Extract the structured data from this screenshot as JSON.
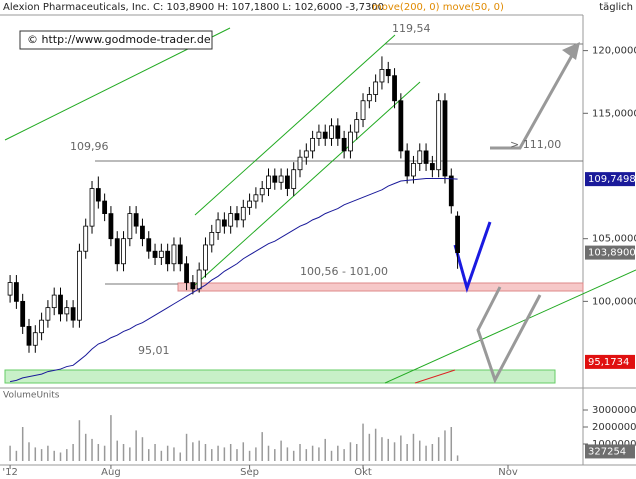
{
  "header": {
    "instrument": "Alexion Pharmaceuticals, Inc. C: 103,8900 H: 107,1800 L: 102,6000 -3,7300",
    "indicators": "move(200, 0) move(50, 0)",
    "interval": "täglich"
  },
  "copyright": "© http://www.godmode-trader.de",
  "chart_data": {
    "type": "candlestick",
    "xlim": [
      -1.6,
      90.9
    ],
    "xticks": [
      {
        "value": 0,
        "label": "'12"
      },
      {
        "value": 16,
        "label": "Aug"
      },
      {
        "value": 38,
        "label": "Sep"
      },
      {
        "value": 56,
        "label": "Okt"
      },
      {
        "value": 79,
        "label": "Nov"
      }
    ],
    "ylim": [
      93.33,
      122.84
    ],
    "yticks": [
      {
        "value": 100,
        "label": "100,0000"
      },
      {
        "value": 105,
        "label": "105,0000"
      },
      {
        "value": 115,
        "label": "115,0000"
      },
      {
        "value": 120,
        "label": "120,0000"
      }
    ],
    "open": [
      100.5,
      101.5,
      100,
      98,
      96.5,
      97.5,
      98.5,
      99.5,
      100.5,
      99,
      99.5,
      98.5,
      104,
      106,
      109,
      108,
      107,
      105,
      103,
      105,
      107,
      106,
      105,
      104,
      103.5,
      104,
      103,
      104.5,
      103,
      101.5,
      101,
      102.5,
      104.5,
      105.5,
      106.5,
      106,
      107,
      106.5,
      107.5,
      108,
      108.5,
      109,
      110,
      109.5,
      110,
      109,
      110.5,
      111.5,
      112,
      113,
      113.5,
      113,
      114,
      113,
      112,
      113.5,
      114.5,
      116,
      116.5,
      117.5,
      118.5,
      118,
      116,
      112,
      110,
      111,
      112,
      111,
      110.5,
      116,
      110,
      106.8
    ],
    "high": [
      102.1,
      102.1,
      100.6,
      98.6,
      98.1,
      99.1,
      100.1,
      101.1,
      101.1,
      100.1,
      100.1,
      104.6,
      106.6,
      109.6,
      109.96,
      108.6,
      107.6,
      105.6,
      105.6,
      107.6,
      107.6,
      106.6,
      105.6,
      104.6,
      104.6,
      104.6,
      105.1,
      105.1,
      103.6,
      102.1,
      103.1,
      105.1,
      106.1,
      107.1,
      107.1,
      107.6,
      107.6,
      108.1,
      108.6,
      109.1,
      109.6,
      110.6,
      110.6,
      110.6,
      110.6,
      111.1,
      112.1,
      112.6,
      113.6,
      114.1,
      114.1,
      114.6,
      114.6,
      113.6,
      114.1,
      115.1,
      116.6,
      117.1,
      118.1,
      119.54,
      119.1,
      118.6,
      116.6,
      112.6,
      111.6,
      112.6,
      112.6,
      111.6,
      116.6,
      116.6,
      110.6,
      107.18
    ],
    "low": [
      99.9,
      99.4,
      97.4,
      95.9,
      95.9,
      96.9,
      97.9,
      98.9,
      98.4,
      98.4,
      97.9,
      97.9,
      103.4,
      105.4,
      107.4,
      106.4,
      104.4,
      102.4,
      102.4,
      104.4,
      105.4,
      104.4,
      103.4,
      102.9,
      102.9,
      102.4,
      102.4,
      102.4,
      100.9,
      100.56,
      100.7,
      101.9,
      103.9,
      104.9,
      105.4,
      105.4,
      105.9,
      105.9,
      106.9,
      107.4,
      107.9,
      108.4,
      108.9,
      108.9,
      108.4,
      108.4,
      109.9,
      110.9,
      111.4,
      112.4,
      112.4,
      112.4,
      112.4,
      111.4,
      111.4,
      112.9,
      113.9,
      115.4,
      115.9,
      116.9,
      117.4,
      115.4,
      111.4,
      109.4,
      109.4,
      110.4,
      110.4,
      109.9,
      109.9,
      109.4,
      107.0,
      102.6
    ],
    "close": [
      101.5,
      100,
      98,
      96.5,
      97.5,
      98.5,
      99.5,
      100.5,
      99,
      99.5,
      98.5,
      104,
      106,
      109,
      108,
      107,
      105,
      103,
      105,
      107,
      106,
      105,
      104,
      103.5,
      104,
      103,
      104.5,
      103,
      101.5,
      101,
      102.5,
      104.5,
      105.5,
      106.5,
      106,
      107,
      106.5,
      107.5,
      108,
      108.5,
      109,
      110,
      109.5,
      110,
      109,
      110.5,
      111.5,
      112,
      113,
      113.5,
      113,
      114,
      113,
      112,
      113.5,
      114.5,
      116,
      116.5,
      117.5,
      118.5,
      118,
      116,
      112,
      110,
      111,
      112,
      111,
      110.5,
      116,
      110,
      107.62,
      103.89
    ],
    "moving_average": {
      "color": "#1a1a9a",
      "values": [
        93.6,
        93.7,
        93.9,
        94.0,
        94.1,
        94.2,
        94.4,
        94.5,
        94.6,
        94.8,
        94.9,
        95.3,
        95.7,
        96.2,
        96.6,
        96.8,
        97.1,
        97.3,
        97.6,
        97.8,
        98.1,
        98.3,
        98.6,
        98.9,
        99.2,
        99.5,
        99.8,
        100.1,
        100.4,
        100.7,
        101.0,
        101.3,
        101.7,
        102.0,
        102.4,
        102.7,
        103.0,
        103.4,
        103.7,
        104.0,
        104.3,
        104.6,
        104.8,
        105.1,
        105.4,
        105.7,
        106.0,
        106.2,
        106.5,
        106.7,
        107.0,
        107.2,
        107.4,
        107.7,
        107.9,
        108.1,
        108.3,
        108.5,
        108.7,
        108.9,
        109.2,
        109.4,
        109.6,
        109.65,
        109.7,
        109.75,
        109.8,
        109.8,
        109.8,
        109.8,
        109.78,
        109.7498
      ]
    },
    "price_labels": [
      {
        "value": 109.7498,
        "label": "109,7498",
        "color": "#1a1a9a"
      },
      {
        "value": 103.89,
        "label": "103,8900",
        "color": "#6e6e6e"
      },
      {
        "value": 95.1734,
        "label": "95,1734",
        "color": "#e01010"
      }
    ],
    "annotations": [
      "119,54",
      "109,96",
      "100,56 - 101,00",
      "95,01",
      "> 111,00"
    ],
    "volume": {
      "label": "VolumeUnits",
      "color": "#999999",
      "ylim": [
        0,
        4060000
      ],
      "yticks": [
        1000000,
        2000000,
        3000000
      ],
      "values": [
        900000,
        600000,
        2000000,
        1100000,
        800000,
        700000,
        900000,
        600000,
        500000,
        700000,
        1000000,
        2400000,
        1600000,
        1300000,
        1000000,
        900000,
        2700000,
        1200000,
        1000000,
        800000,
        1800000,
        1400000,
        700000,
        1000000,
        600000,
        900000,
        800000,
        500000,
        1600000,
        1100000,
        1200000,
        1000000,
        700000,
        900000,
        800000,
        1000000,
        700000,
        1100000,
        600000,
        800000,
        1700000,
        900000,
        700000,
        1200000,
        800000,
        600000,
        1000000,
        700000,
        900000,
        800000,
        1300000,
        600000,
        900000,
        700000,
        1100000,
        1000000,
        2200000,
        1600000,
        1900000,
        1400000,
        1300000,
        1100000,
        1500000,
        1000000,
        1600000,
        1200000,
        900000,
        1000000,
        1400000,
        1800000,
        2000000,
        327254
      ]
    }
  }
}
